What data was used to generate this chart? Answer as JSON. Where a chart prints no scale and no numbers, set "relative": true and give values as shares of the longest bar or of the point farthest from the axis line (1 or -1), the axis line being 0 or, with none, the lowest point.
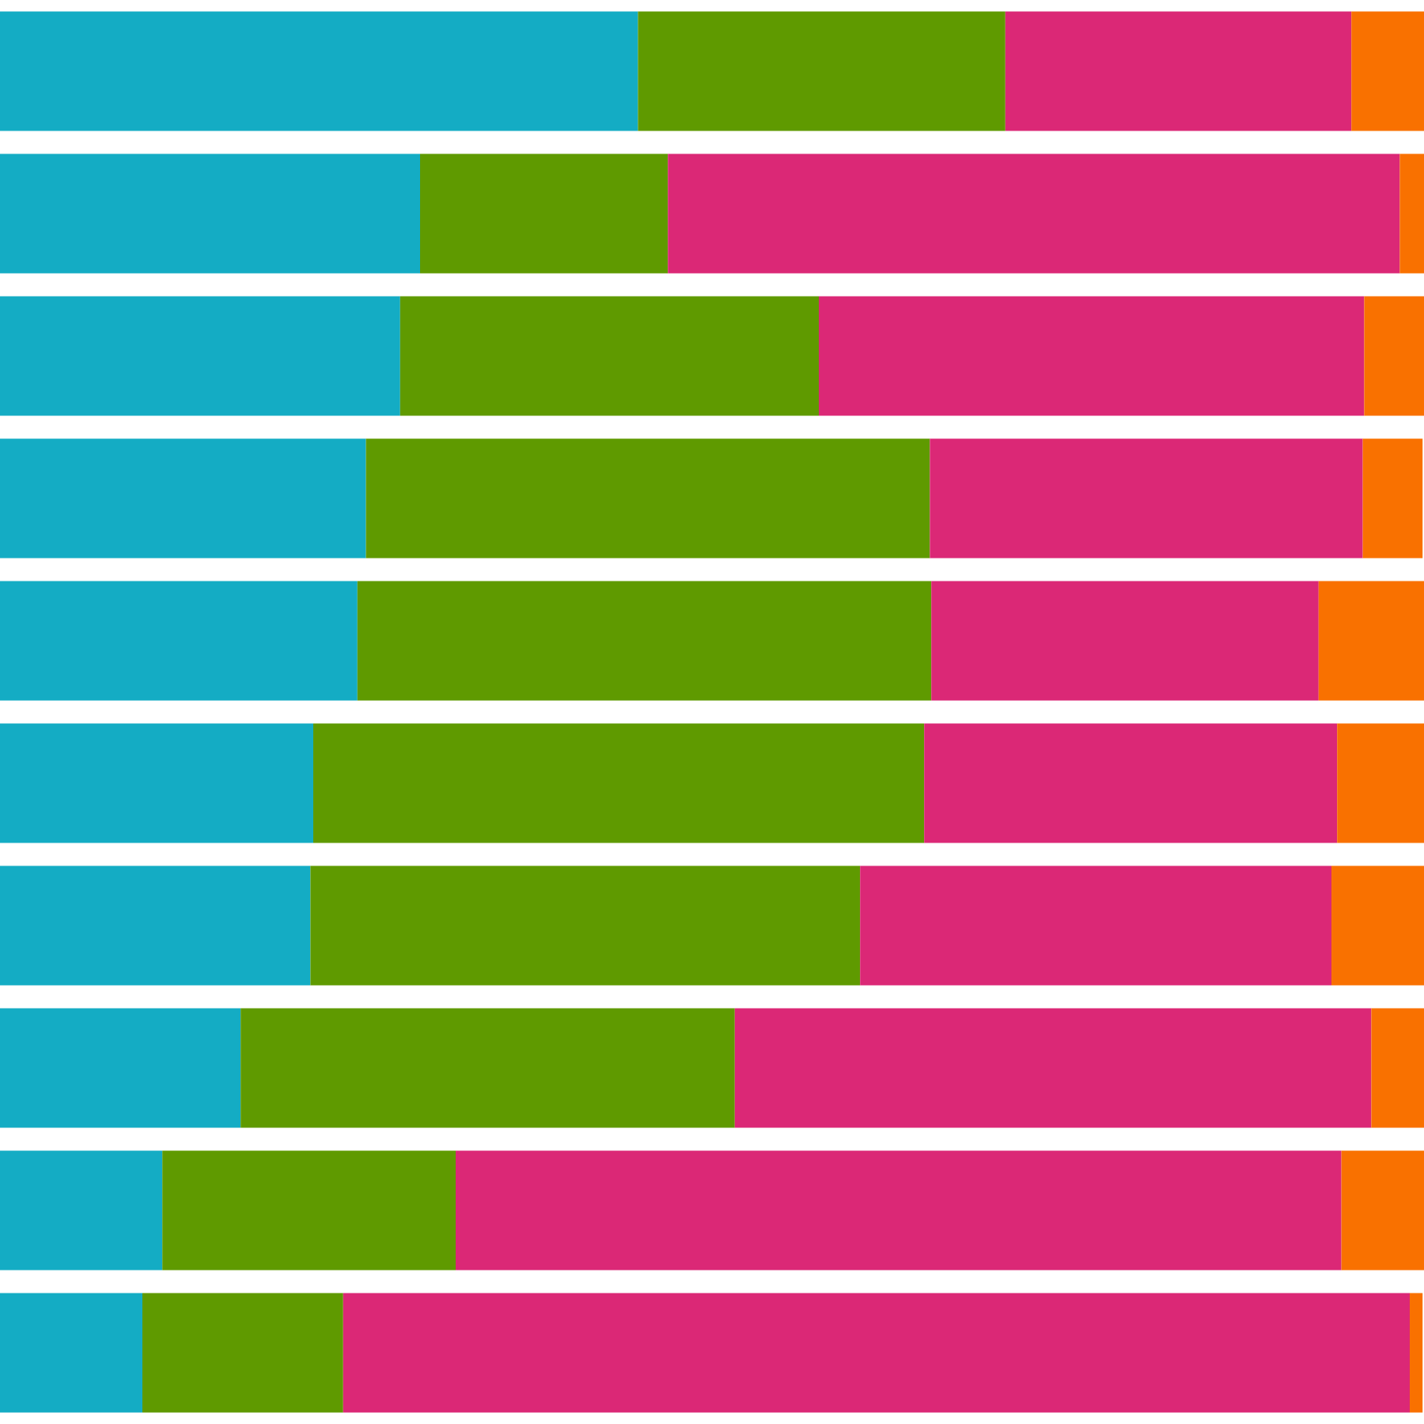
{
  "chart_data": {
    "type": "bar",
    "orientation": "horizontal",
    "stacked": true,
    "relative": true,
    "categories": [
      null,
      null,
      null,
      null,
      null,
      null,
      null,
      null,
      null,
      null
    ],
    "series": [
      {
        "color": "#14acc4",
        "values": [
          0.448,
          0.295,
          0.281,
          0.257,
          0.251,
          0.22,
          0.218,
          0.169,
          0.114,
          0.1
        ]
      },
      {
        "color": "#5f9a00",
        "values": [
          0.258,
          0.174,
          0.294,
          0.396,
          0.403,
          0.429,
          0.386,
          0.347,
          0.206,
          0.141
        ]
      },
      {
        "color": "#db2876",
        "values": [
          0.243,
          0.514,
          0.383,
          0.304,
          0.272,
          0.29,
          0.331,
          0.447,
          0.622,
          0.749
        ]
      },
      {
        "color": "#f97100",
        "values": [
          0.051,
          0.017,
          0.042,
          0.042,
          0.074,
          0.061,
          0.065,
          0.037,
          0.058,
          0.009
        ]
      }
    ],
    "grid": false
  }
}
